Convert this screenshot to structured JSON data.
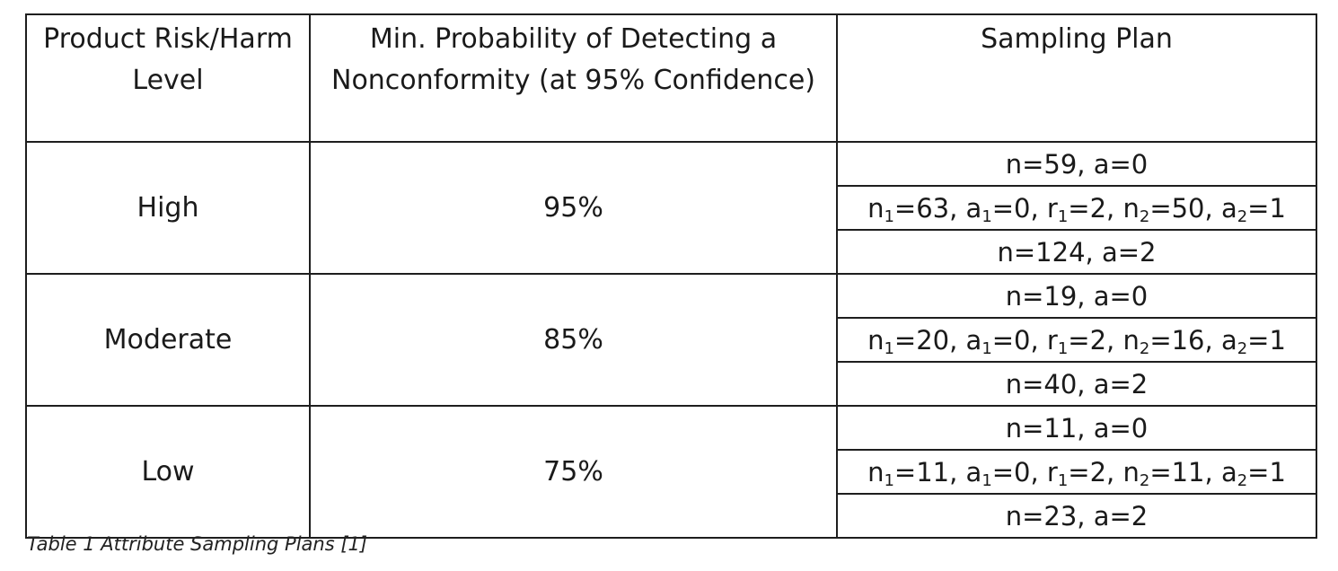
{
  "table": {
    "headers": [
      "Product Risk/Harm Level",
      "Min. Probability of Detecting a Nonconformity (at 95% Confidence)",
      "Sampling Plan"
    ],
    "rows": [
      {
        "level": "High",
        "probability": "95%",
        "plans": [
          [
            {
              "t": "n=59, a=0"
            }
          ],
          [
            {
              "t": "n"
            },
            {
              "s": "1"
            },
            {
              "t": "=63, a"
            },
            {
              "s": "1"
            },
            {
              "t": "=0, r"
            },
            {
              "s": "1"
            },
            {
              "t": "=2, n"
            },
            {
              "s": "2"
            },
            {
              "t": "=50, a"
            },
            {
              "s": "2"
            },
            {
              "t": "=1"
            }
          ],
          [
            {
              "t": "n=124, a=2"
            }
          ]
        ]
      },
      {
        "level": "Moderate",
        "probability": "85%",
        "plans": [
          [
            {
              "t": "n=19, a=0"
            }
          ],
          [
            {
              "t": "n"
            },
            {
              "s": "1"
            },
            {
              "t": "=20, a"
            },
            {
              "s": "1"
            },
            {
              "t": "=0, r"
            },
            {
              "s": "1"
            },
            {
              "t": "=2, n"
            },
            {
              "s": "2"
            },
            {
              "t": "=16, a"
            },
            {
              "s": "2"
            },
            {
              "t": "=1"
            }
          ],
          [
            {
              "t": "n=40, a=2"
            }
          ]
        ]
      },
      {
        "level": "Low",
        "probability": "75%",
        "plans": [
          [
            {
              "t": "n=11, a=0"
            }
          ],
          [
            {
              "t": "n"
            },
            {
              "s": "1"
            },
            {
              "t": "=11, a"
            },
            {
              "s": "1"
            },
            {
              "t": "=0, r"
            },
            {
              "s": "1"
            },
            {
              "t": "=2, n"
            },
            {
              "s": "2"
            },
            {
              "t": "=11, a"
            },
            {
              "s": "2"
            },
            {
              "t": "=1"
            }
          ],
          [
            {
              "t": "n=23, a=2"
            }
          ]
        ]
      }
    ]
  },
  "caption": "Table 1 Attribute Sampling Plans [1]"
}
